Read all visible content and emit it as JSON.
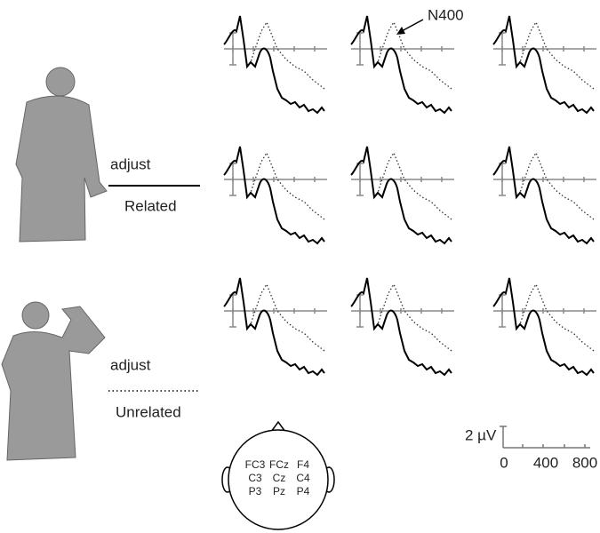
{
  "legend": [
    {
      "word": "adjust",
      "condition": "Related"
    },
    {
      "word": "adjust",
      "condition": "Unrelated"
    }
  ],
  "annotation": "N400",
  "electrodes": [
    [
      "FC3",
      "FCz",
      "F4"
    ],
    [
      "C3",
      "Cz",
      "C4"
    ],
    [
      "P3",
      "Pz",
      "P4"
    ]
  ],
  "scale": {
    "amplitude": "2 µV",
    "time_labels": [
      "0",
      "400",
      "800"
    ]
  }
}
